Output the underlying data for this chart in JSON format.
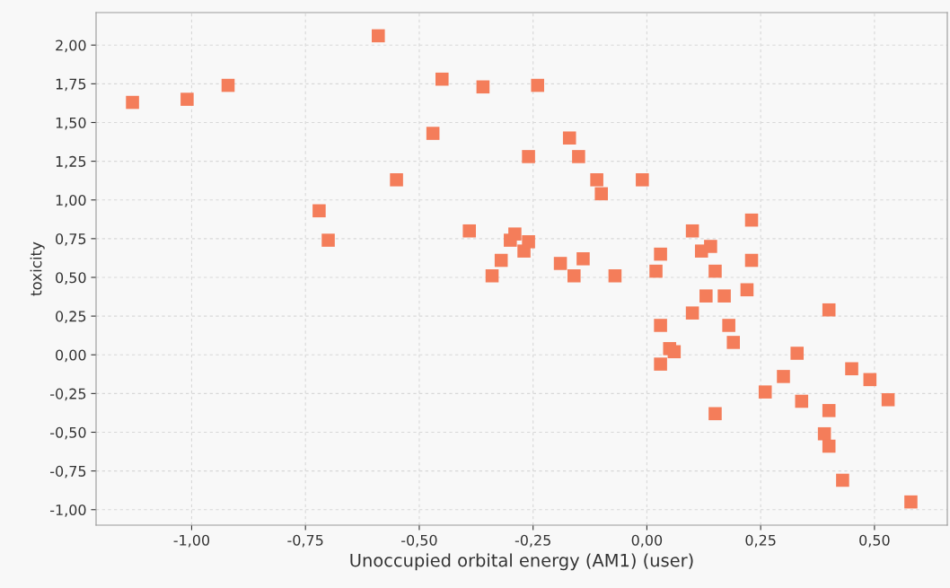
{
  "chart_data": {
    "type": "scatter",
    "xlabel": "Unoccupied orbital energy (AM1) (user)",
    "ylabel": "toxicity",
    "marker": "square",
    "grid": true,
    "x": [
      -1.13,
      -1.01,
      -0.92,
      -0.59,
      -0.45,
      -0.36,
      -0.24,
      -0.47,
      -0.55,
      -0.72,
      -0.7,
      -0.39,
      -0.17,
      -0.15,
      -0.26,
      -0.11,
      -0.1,
      -0.01,
      -0.34,
      -0.32,
      -0.3,
      -0.29,
      -0.27,
      -0.26,
      -0.19,
      -0.16,
      -0.14,
      -0.07,
      0.02,
      0.03,
      0.1,
      0.12,
      0.14,
      0.15,
      0.23,
      0.23,
      0.03,
      0.05,
      0.06,
      0.03,
      0.1,
      0.13,
      0.17,
      0.18,
      0.19,
      0.22,
      0.15,
      0.26,
      0.3,
      0.33,
      0.34,
      0.4,
      0.45,
      0.49,
      0.53,
      0.4,
      0.39,
      0.4,
      0.43,
      0.58
    ],
    "series": [
      {
        "color": "#f47d5a",
        "values": [
          1.63,
          1.65,
          1.74,
          2.06,
          1.78,
          1.73,
          1.74,
          1.43,
          1.13,
          0.93,
          0.74,
          0.8,
          1.4,
          1.28,
          1.28,
          1.13,
          1.04,
          1.13,
          0.51,
          0.61,
          0.74,
          0.78,
          0.67,
          0.73,
          0.59,
          0.51,
          0.62,
          0.51,
          0.54,
          0.65,
          0.8,
          0.67,
          0.7,
          0.54,
          0.87,
          0.61,
          0.19,
          0.04,
          0.02,
          -0.06,
          0.27,
          0.38,
          0.38,
          0.19,
          0.08,
          0.42,
          -0.38,
          -0.24,
          -0.14,
          0.01,
          -0.3,
          0.29,
          -0.09,
          -0.16,
          -0.29,
          -0.36,
          -0.51,
          -0.59,
          -0.81,
          -0.95
        ]
      }
    ],
    "xlim": [
      -1.21,
      0.66
    ],
    "ylim": [
      -1.1,
      2.21
    ],
    "xticks": [
      {
        "value": -1.0,
        "label": "-1,00"
      },
      {
        "value": -0.75,
        "label": "-0,75"
      },
      {
        "value": -0.5,
        "label": "-0,50"
      },
      {
        "value": -0.25,
        "label": "-0,25"
      },
      {
        "value": 0,
        "label": "0,00"
      },
      {
        "value": 0.25,
        "label": "0,25"
      },
      {
        "value": 0.5,
        "label": "0,50"
      }
    ],
    "yticks": [
      {
        "value": -1.0,
        "label": "-1,00"
      },
      {
        "value": -0.75,
        "label": "-0,75"
      },
      {
        "value": -0.5,
        "label": "-0,50"
      },
      {
        "value": -0.25,
        "label": "-0,25"
      },
      {
        "value": 0,
        "label": "0,00"
      },
      {
        "value": 0.25,
        "label": "0,25"
      },
      {
        "value": 0.5,
        "label": "0,50"
      },
      {
        "value": 0.75,
        "label": "0,75"
      },
      {
        "value": 1.0,
        "label": "1,00"
      },
      {
        "value": 1.25,
        "label": "1,25"
      },
      {
        "value": 1.5,
        "label": "1,50"
      },
      {
        "value": 1.75,
        "label": "1,75"
      },
      {
        "value": 2.0,
        "label": "2,00"
      }
    ]
  }
}
